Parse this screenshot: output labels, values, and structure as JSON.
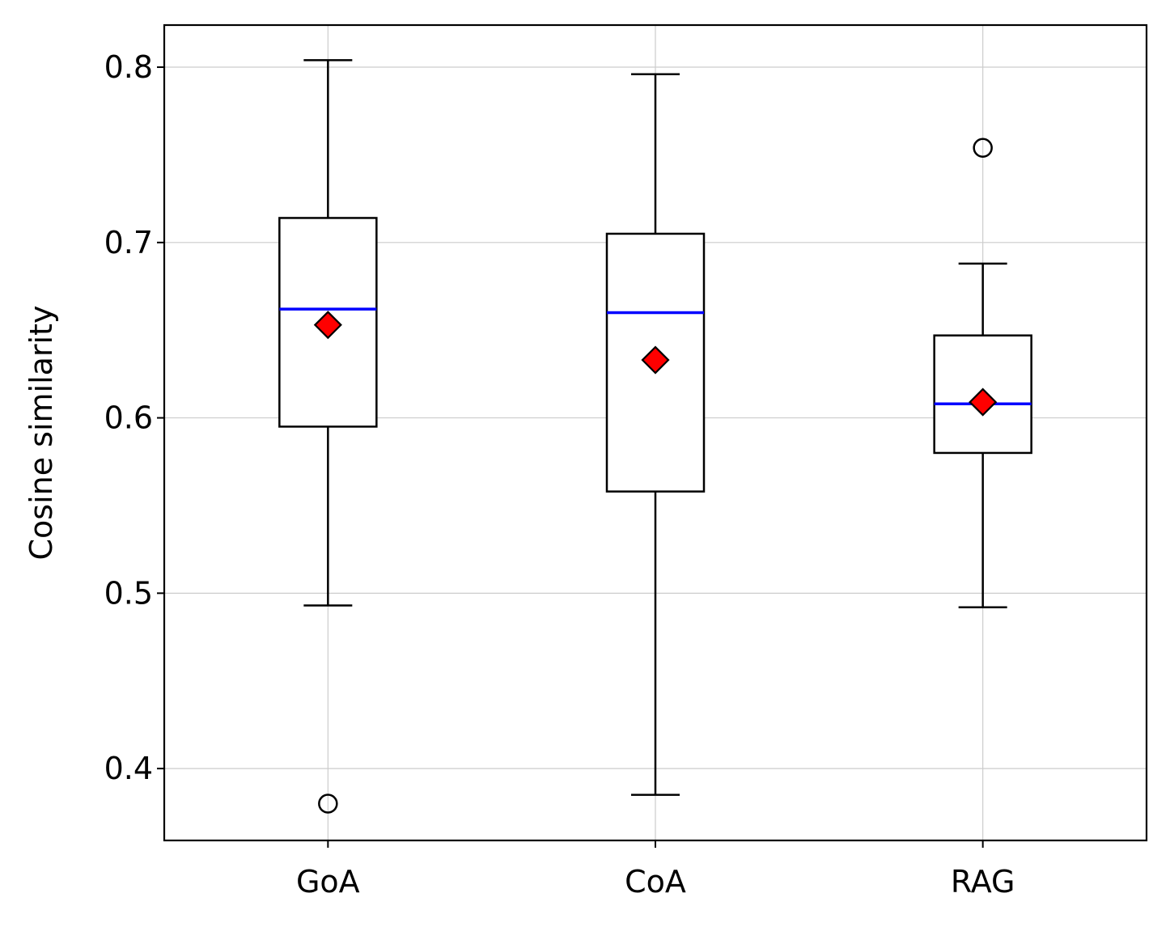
{
  "chart_data": {
    "type": "boxplot",
    "title": "",
    "xlabel": "",
    "ylabel": "Cosine similarity",
    "ylim": [
      0.359,
      0.824
    ],
    "yticks": [
      0.4,
      0.5,
      0.6,
      0.7,
      0.8
    ],
    "ytick_labels": [
      "0.4",
      "0.5",
      "0.6",
      "0.7",
      "0.8"
    ],
    "grid": true,
    "categories": [
      "GoA",
      "CoA",
      "RAG"
    ],
    "boxes": [
      {
        "name": "GoA",
        "whisker_low": 0.493,
        "q1": 0.595,
        "median": 0.662,
        "q3": 0.714,
        "whisker_high": 0.804,
        "mean": 0.653,
        "outliers": [
          0.38
        ]
      },
      {
        "name": "CoA",
        "whisker_low": 0.385,
        "q1": 0.558,
        "median": 0.66,
        "q3": 0.705,
        "whisker_high": 0.796,
        "mean": 0.633,
        "outliers": []
      },
      {
        "name": "RAG",
        "whisker_low": 0.492,
        "q1": 0.58,
        "median": 0.608,
        "q3": 0.647,
        "whisker_high": 0.688,
        "mean": 0.609,
        "outliers": [
          0.754
        ]
      }
    ],
    "colors": {
      "median": "#0000ff",
      "mean": "#ff0000",
      "box": "#000000",
      "grid": "#cccccc"
    }
  }
}
